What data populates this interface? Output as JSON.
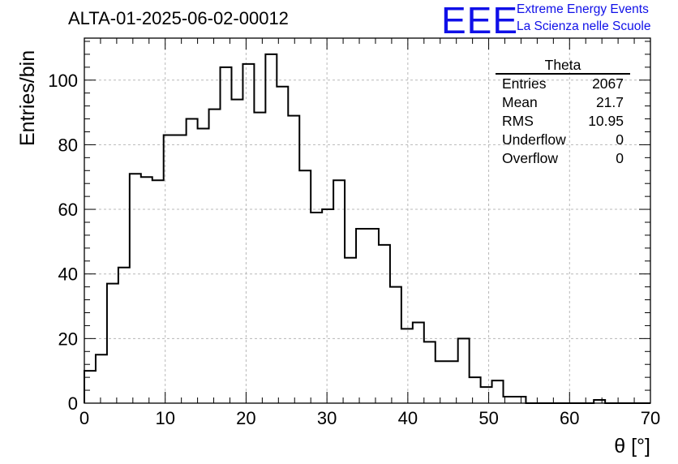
{
  "title": "ALTA-01-2025-06-02-00012",
  "logo": {
    "mark": "EEE",
    "line1": "Extreme Energy Events",
    "line2": "La Scienza nelle Scuole",
    "color": "#1010e8"
  },
  "stats": {
    "name": "Theta",
    "rows": [
      {
        "label": "Entries",
        "value": "2067"
      },
      {
        "label": "Mean",
        "value": "21.7"
      },
      {
        "label": "RMS",
        "value": "10.95"
      },
      {
        "label": "Underflow",
        "value": "0"
      },
      {
        "label": "Overflow",
        "value": "0"
      }
    ]
  },
  "chart_data": {
    "type": "histogram",
    "title": "ALTA-01-2025-06-02-00012",
    "xlabel": "θ [°]",
    "ylabel": "Entries/bin",
    "xlim": [
      0,
      70
    ],
    "ylim": [
      0,
      113
    ],
    "bin_width": 1.4,
    "bin_start": 0,
    "values": [
      10,
      15,
      37,
      42,
      71,
      70,
      69,
      83,
      83,
      88,
      85,
      91,
      104,
      94,
      105,
      90,
      108,
      98,
      89,
      72,
      59,
      60,
      69,
      45,
      54,
      54,
      49,
      36,
      23,
      25,
      19,
      13,
      13,
      20,
      8,
      5,
      7,
      2,
      2,
      0,
      0,
      0,
      0,
      0,
      0,
      1,
      0,
      0,
      0,
      0
    ],
    "xticks": [
      0,
      10,
      20,
      30,
      40,
      50,
      60,
      70
    ],
    "yticks": [
      0,
      20,
      40,
      60,
      80,
      100
    ],
    "grid": true,
    "line_color": "#000000"
  }
}
